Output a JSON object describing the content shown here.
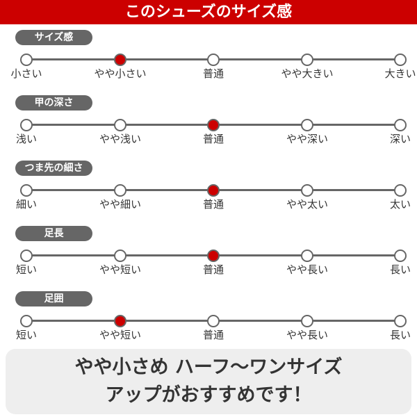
{
  "title": "このシューズのサイズ感",
  "accent": "#cc0000",
  "sections": [
    {
      "label": "サイズ感",
      "options": [
        "小さい",
        "やや小さい",
        "普通",
        "やや大きい",
        "大きい"
      ],
      "selected": 1
    },
    {
      "label": "甲の深さ",
      "options": [
        "浅い",
        "やや浅い",
        "普通",
        "やや深い",
        "深い"
      ],
      "selected": 2
    },
    {
      "label": "つま先の細さ",
      "options": [
        "細い",
        "やや細い",
        "普通",
        "やや太い",
        "太い"
      ],
      "selected": 2
    },
    {
      "label": "足長",
      "options": [
        "短い",
        "やや短い",
        "普通",
        "やや長い",
        "長い"
      ],
      "selected": 2
    },
    {
      "label": "足囲",
      "options": [
        "短い",
        "やや短い",
        "普通",
        "やや長い",
        "長い"
      ],
      "selected": 1
    }
  ],
  "recommendation": {
    "line1": "やや小さめ ハーフ〜ワンサイズ",
    "line2": "アップがおすすめです！"
  }
}
